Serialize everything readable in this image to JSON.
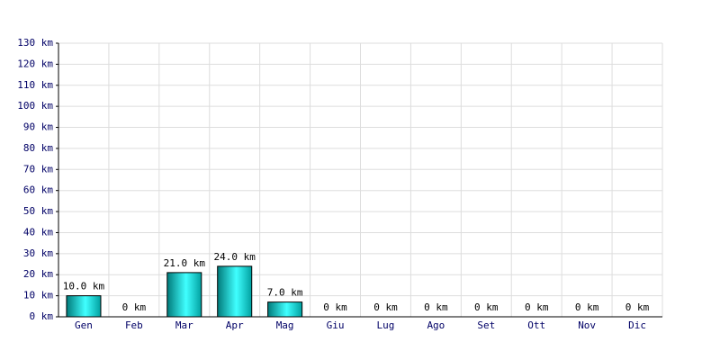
{
  "chart_data": {
    "type": "bar",
    "categories": [
      "Gen",
      "Feb",
      "Mar",
      "Apr",
      "Mag",
      "Giu",
      "Lug",
      "Ago",
      "Set",
      "Ott",
      "Nov",
      "Dic"
    ],
    "values": [
      10,
      0,
      21,
      24,
      7,
      0,
      0,
      0,
      0,
      0,
      0,
      0
    ],
    "value_labels": [
      "10.0 km",
      "0 km",
      "21.0 km",
      "24.0 km",
      "7.0 km",
      "0 km",
      "0 km",
      "0 km",
      "0 km",
      "0 km",
      "0 km",
      "0 km"
    ],
    "color": "#00c8c8",
    "ylim": [
      0,
      130
    ],
    "yticks": [
      {
        "value": 0,
        "label": "0 km"
      },
      {
        "value": 10,
        "label": "10 km"
      },
      {
        "value": 20,
        "label": "20 km"
      },
      {
        "value": 30,
        "label": "30 km"
      },
      {
        "value": 40,
        "label": "40 km"
      },
      {
        "value": 50,
        "label": "50 km"
      },
      {
        "value": 60,
        "label": "60 km"
      },
      {
        "value": 70,
        "label": "70 km"
      },
      {
        "value": 80,
        "label": "80 km"
      },
      {
        "value": 90,
        "label": "90 km"
      },
      {
        "value": 100,
        "label": "100 km"
      },
      {
        "value": 110,
        "label": "110 km"
      },
      {
        "value": 120,
        "label": "120 km"
      },
      {
        "value": 130,
        "label": "130 km"
      }
    ],
    "grid": true
  }
}
